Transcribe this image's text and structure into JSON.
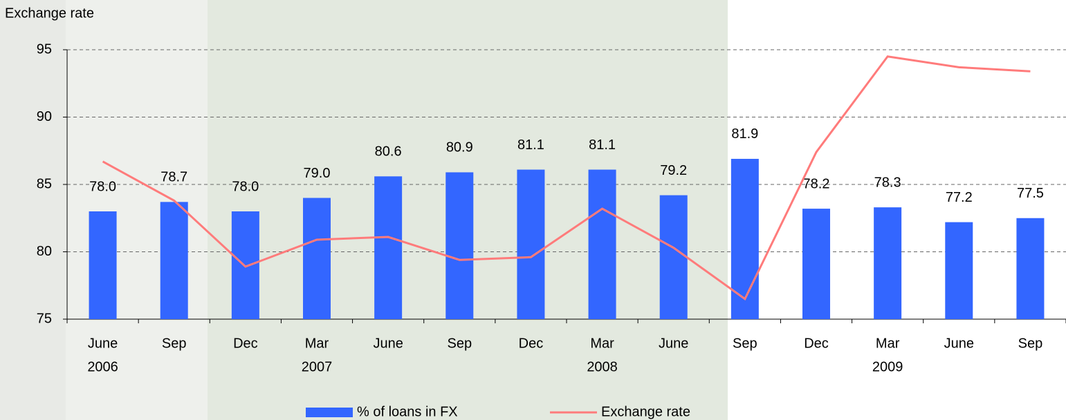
{
  "chart_data": {
    "type": "bar",
    "y_axis_label": "Exchange rate",
    "categories": [
      "June",
      "Sep",
      "Dec",
      "Mar",
      "June",
      "Sep",
      "Dec",
      "Mar",
      "June",
      "Sep",
      "Dec",
      "Mar",
      "June",
      "Sep"
    ],
    "category_years": [
      "2006",
      null,
      null,
      "2007",
      null,
      null,
      null,
      "2008",
      null,
      null,
      null,
      "2009",
      null,
      null
    ],
    "ylim": [
      75,
      95
    ],
    "yticks": [
      75,
      80,
      85,
      90,
      95
    ],
    "y2lim": [
      70,
      90
    ],
    "grid": true,
    "legend": "bottom",
    "series": [
      {
        "name": "% of loans in FX",
        "type": "bar",
        "axis": "y2",
        "color": "#3366ff",
        "values": [
          78.0,
          78.7,
          78.0,
          79.0,
          80.6,
          80.9,
          81.1,
          81.1,
          79.2,
          81.9,
          78.2,
          78.3,
          77.2,
          77.5
        ],
        "value_labels": [
          "78.0",
          "78.7",
          "78.0",
          "79.0",
          "80.6",
          "80.9",
          "81.1",
          "81.1",
          "79.2",
          "81.9",
          "78.2",
          "78.3",
          "77.2",
          "77.5"
        ]
      },
      {
        "name": "Exchange rate",
        "type": "line",
        "color": "#ff7b7b",
        "values": [
          86.7,
          83.8,
          78.9,
          80.9,
          81.1,
          79.4,
          79.6,
          83.2,
          80.3,
          76.5,
          87.4,
          94.5,
          93.7,
          93.4
        ]
      }
    ]
  }
}
